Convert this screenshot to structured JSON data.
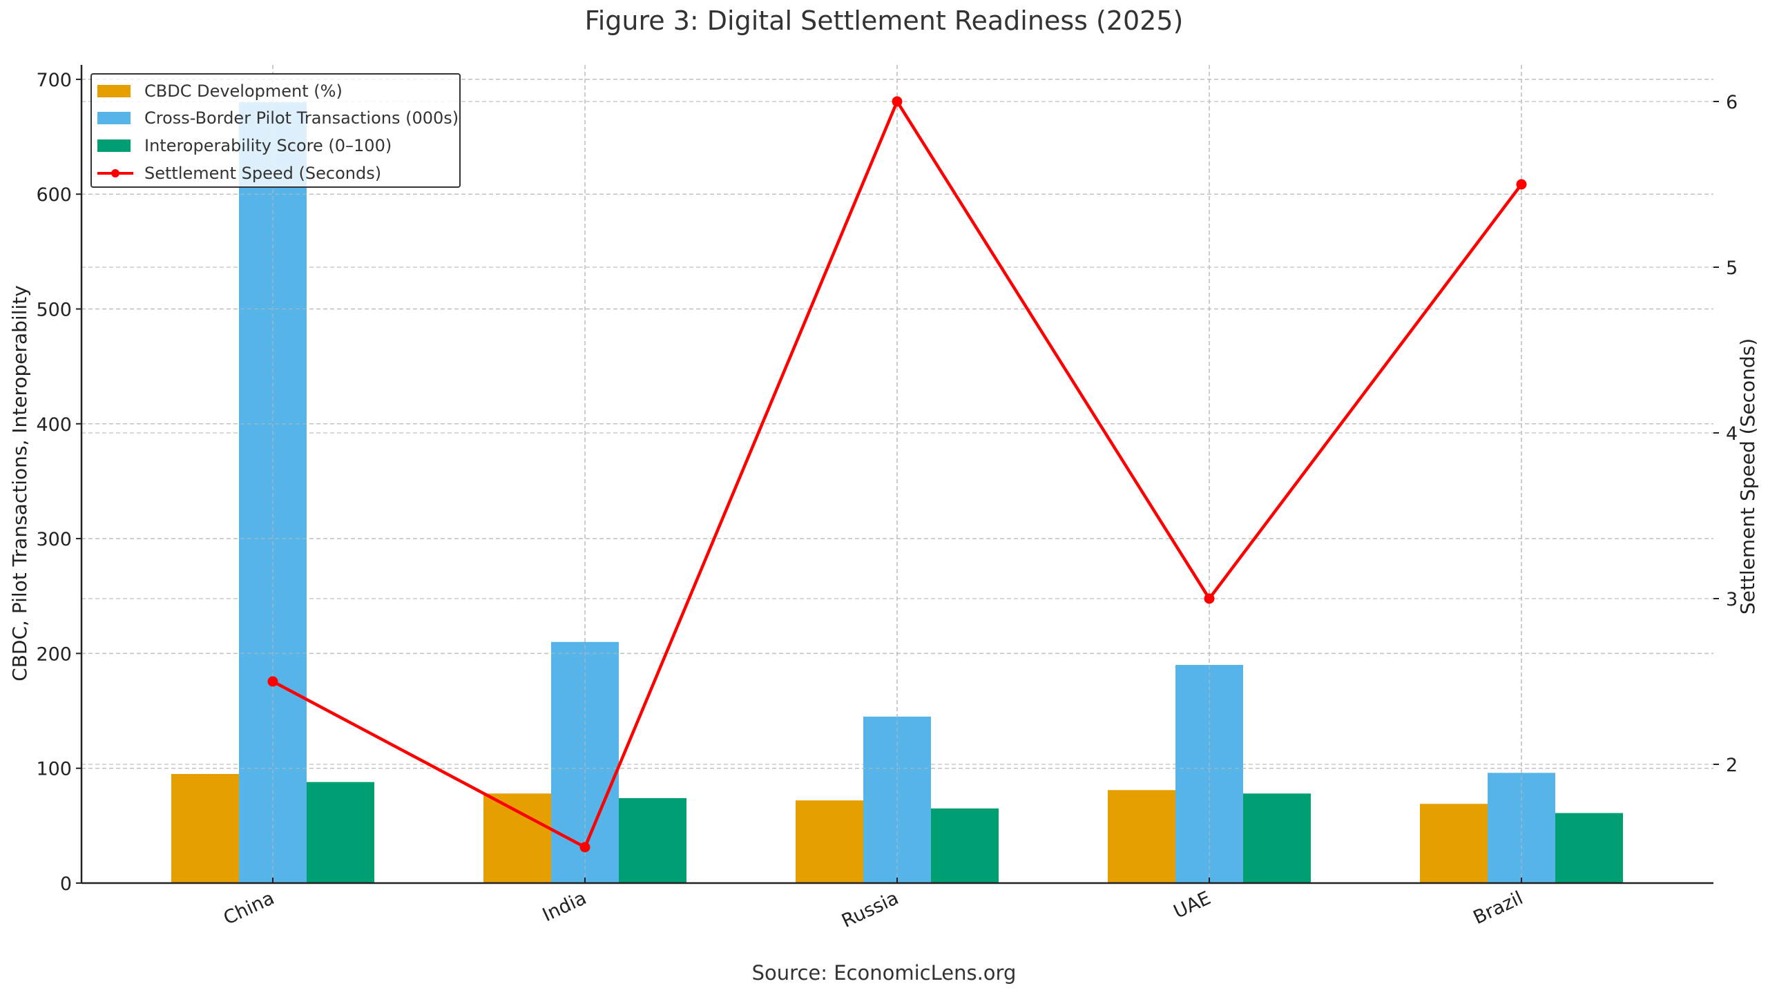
{
  "title": "Figure 3: Digital Settlement Readiness (2025)",
  "source": "Source: EconomicLens.org",
  "legend": {
    "items": [
      {
        "label": "CBDC Development (%)",
        "color": "#E69F00",
        "type": "bar"
      },
      {
        "label": "Cross-Border Pilot Transactions (000s)",
        "color": "#56B4E9",
        "type": "bar"
      },
      {
        "label": "Interoperability Score (0–100)",
        "color": "#009E73",
        "type": "bar"
      },
      {
        "label": "Settlement Speed (Seconds)",
        "color": "#FF0000",
        "type": "line"
      }
    ]
  },
  "axes": {
    "left_label": "CBDC, Pilot Transactions, Interoperability",
    "right_label": "Settlement Speed (Seconds)",
    "left_ticks": [
      "0",
      "100",
      "200",
      "300",
      "400",
      "500",
      "600",
      "700"
    ],
    "right_ticks": [
      "2",
      "3",
      "4",
      "5",
      "6"
    ]
  },
  "chart_data": {
    "type": "bar",
    "title": "Figure 3: Digital Settlement Readiness (2025)",
    "categories": [
      "China",
      "India",
      "Russia",
      "UAE",
      "Brazil"
    ],
    "series": [
      {
        "name": "CBDC Development (%)",
        "type": "bar",
        "axis": "left",
        "color": "#E69F00",
        "values": [
          95,
          78,
          72,
          81,
          69
        ]
      },
      {
        "name": "Cross-Border Pilot Transactions (000s)",
        "type": "bar",
        "axis": "left",
        "color": "#56B4E9",
        "values": [
          680,
          210,
          145,
          190,
          96
        ]
      },
      {
        "name": "Interoperability Score (0–100)",
        "type": "bar",
        "axis": "left",
        "color": "#009E73",
        "values": [
          88,
          74,
          65,
          78,
          61
        ]
      },
      {
        "name": "Settlement Speed (Seconds)",
        "type": "line",
        "axis": "right",
        "color": "#FF0000",
        "values": [
          2.5,
          1.5,
          6.0,
          3.0,
          5.5
        ]
      }
    ],
    "xlabel": "",
    "ylabel": "CBDC, Pilot Transactions, Interoperability",
    "y2label": "Settlement Speed (Seconds)",
    "ylim": [
      0,
      710
    ],
    "y2lim": [
      1.28,
      6.2
    ],
    "grid": true,
    "legend_position": "upper left",
    "source": "Source: EconomicLens.org"
  }
}
